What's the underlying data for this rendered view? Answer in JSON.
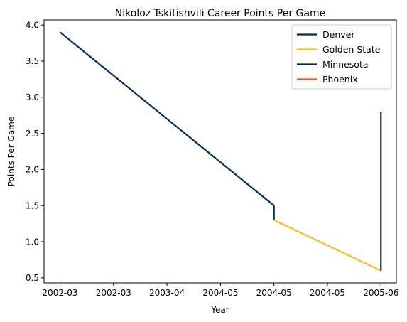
{
  "chart_data": {
    "type": "line",
    "title": "Nikoloz Tskitishvili Career Points Per Game",
    "xlabel": "Year",
    "ylabel": "Points Per Game",
    "x_tick_labels": [
      "2002-03",
      "2002-03",
      "2003-04",
      "2004-05",
      "2004-05",
      "2004-05",
      "2005-06"
    ],
    "y_ticks": [
      0.5,
      1.0,
      1.5,
      2.0,
      2.5,
      3.0,
      3.5,
      4.0
    ],
    "y_tick_labels": [
      "0.5",
      "1.0",
      "1.5",
      "2.0",
      "2.5",
      "3.0",
      "3.5",
      "4.0"
    ],
    "ylim": [
      0.43,
      4.07
    ],
    "grid": false,
    "legend": "top-right",
    "series": [
      {
        "name": "Denver",
        "color": "#002B5C",
        "points": [
          [
            "2002-03",
            3.9
          ],
          [
            "2004-05",
            1.5
          ],
          [
            "2004-05",
            1.3
          ]
        ]
      },
      {
        "name": "Golden State",
        "color": "#FDB927",
        "points": [
          [
            "2004-05",
            1.3
          ],
          [
            "2005-06",
            0.6
          ]
        ]
      },
      {
        "name": "Minnesota",
        "color": "#0C2340",
        "points": [
          [
            "2005-06",
            0.6
          ],
          [
            "2005-06",
            2.8
          ]
        ]
      },
      {
        "name": "Phoenix",
        "color": "#E56020",
        "points": [
          [
            "2005-06",
            2.8
          ],
          [
            "2005-06",
            2.8
          ]
        ]
      }
    ]
  }
}
